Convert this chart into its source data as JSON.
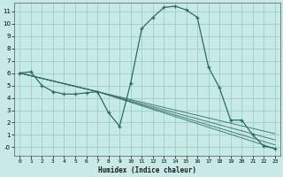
{
  "xlabel": "Humidex (Indice chaleur)",
  "bg_color": "#c8eae6",
  "grid_color": "#9ecece",
  "line_color": "#2d6b60",
  "xlim": [
    -0.5,
    23.5
  ],
  "ylim": [
    -0.7,
    11.7
  ],
  "xtick_vals": [
    0,
    1,
    2,
    3,
    4,
    5,
    6,
    7,
    8,
    9,
    10,
    11,
    12,
    13,
    14,
    15,
    16,
    17,
    18,
    19,
    20,
    21,
    22,
    23
  ],
  "ytick_vals": [
    0,
    1,
    2,
    3,
    4,
    5,
    6,
    7,
    8,
    9,
    10,
    11
  ],
  "main_curve": {
    "x": [
      0,
      1,
      2,
      3,
      4,
      5,
      6,
      7,
      8,
      9,
      10,
      11,
      12,
      13,
      14,
      15,
      16,
      17,
      18,
      19,
      20,
      21,
      22,
      23
    ],
    "y": [
      6.0,
      6.1,
      5.0,
      4.5,
      4.3,
      4.3,
      4.4,
      4.5,
      2.8,
      1.7,
      5.2,
      9.6,
      10.5,
      11.3,
      11.4,
      11.1,
      10.5,
      6.5,
      4.8,
      2.2,
      2.2,
      1.0,
      0.1,
      -0.1
    ]
  },
  "diag_lines": [
    {
      "x": [
        0,
        7,
        23
      ],
      "y": [
        6.0,
        4.5,
        -0.1
      ]
    },
    {
      "x": [
        0,
        7,
        23
      ],
      "y": [
        6.0,
        4.5,
        0.2
      ]
    },
    {
      "x": [
        0,
        7,
        23
      ],
      "y": [
        6.0,
        4.5,
        0.6
      ]
    },
    {
      "x": [
        0,
        7,
        23
      ],
      "y": [
        6.0,
        4.5,
        1.1
      ]
    }
  ]
}
